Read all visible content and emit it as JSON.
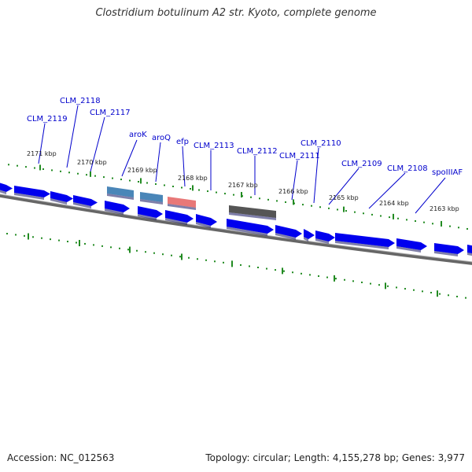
{
  "title": "Clostridium botulinum A2 str. Kyoto, complete genome",
  "footer": {
    "accession": "Accession: NC_012563",
    "stats": "Topology: circular; Length: 4,155,278 bp; Genes: 3,977"
  },
  "colors": {
    "forward_cds": "#0000ee",
    "reverse_cds": "#0000ee",
    "arok": "#4a86b8",
    "aroq": "#4a86b8",
    "efp": "#e87878",
    "clm_2112": "#555555",
    "backbone": "#888888",
    "ticks": "#228b22",
    "label": "#0000cc"
  },
  "gene_labels": [
    {
      "name": "CLM_2119"
    },
    {
      "name": "CLM_2118"
    },
    {
      "name": "CLM_2117"
    },
    {
      "name": "aroK"
    },
    {
      "name": "aroQ"
    },
    {
      "name": "efp"
    },
    {
      "name": "CLM_2113"
    },
    {
      "name": "CLM_2112"
    },
    {
      "name": "CLM_2111"
    },
    {
      "name": "CLM_2110"
    },
    {
      "name": "CLM_2109"
    },
    {
      "name": "CLM_2108"
    },
    {
      "name": "spoIIIAF"
    }
  ],
  "kbp_markers": [
    "2171 kbp",
    "2170 kbp",
    "2169 kbp",
    "2168 kbp",
    "2167 kbp",
    "2166 kbp",
    "2165 kbp",
    "2164 kbp",
    "2163 kbp"
  ]
}
